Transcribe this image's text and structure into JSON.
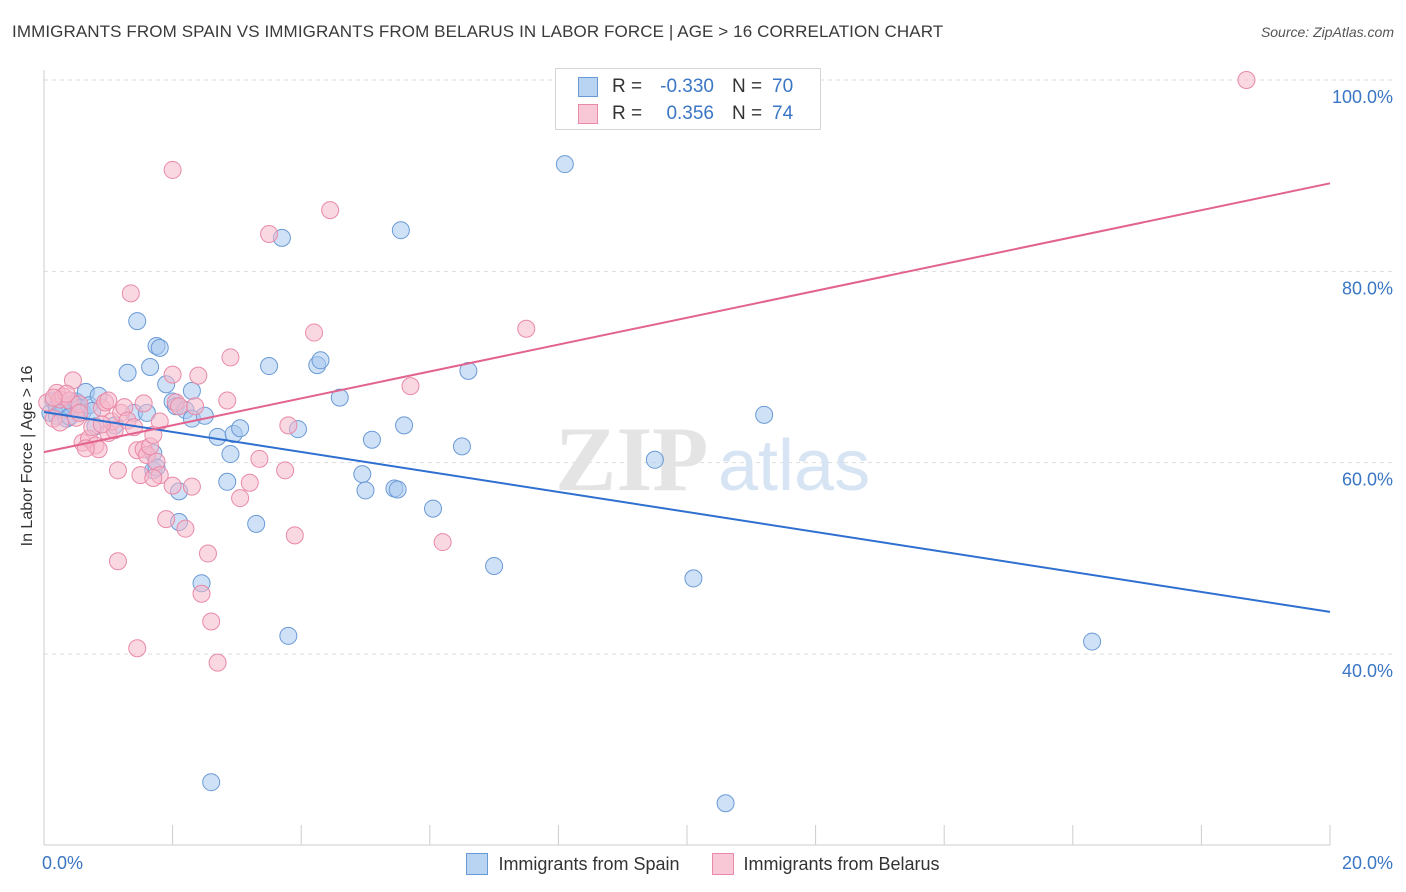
{
  "title": "IMMIGRANTS FROM SPAIN VS IMMIGRANTS FROM BELARUS IN LABOR FORCE | AGE > 16 CORRELATION CHART",
  "source": "Source: ZipAtlas.com",
  "watermark": {
    "zip": "ZIP",
    "atlas": "atlas"
  },
  "legend": {
    "rows": [
      {
        "r_label": "R =",
        "r_value": "-0.330",
        "n_label": "N =",
        "n_value": "70"
      },
      {
        "r_label": "R =",
        "r_value": "0.356",
        "n_label": "N =",
        "n_value": "74"
      }
    ]
  },
  "colors": {
    "spain_fill": "#a8c8ef",
    "spain_stroke": "#6a9ad6",
    "spain_line": "#2e6fd0",
    "belarus_fill": "#f6b8cb",
    "belarus_stroke": "#e98aa8",
    "belarus_line": "#e2638e",
    "tick_label": "#3a76c4",
    "grid": "#dddddd"
  },
  "chart_data": {
    "type": "scatter",
    "title": "IMMIGRANTS FROM SPAIN VS IMMIGRANTS FROM BELARUS IN LABOR FORCE | AGE > 16 CORRELATION CHART",
    "xlabel": "",
    "ylabel": "In Labor Force | Age > 16",
    "xlim": [
      0,
      20
    ],
    "ylim": [
      20,
      102
    ],
    "x_tick_labels": [
      "0.0%",
      "20.0%"
    ],
    "y_ticks": [
      40,
      60,
      80,
      100
    ],
    "y_tick_labels": [
      "40.0%",
      "60.0%",
      "80.0%",
      "100.0%"
    ],
    "series": [
      {
        "name": "Immigrants from Spain",
        "trend": {
          "x": [
            0,
            20
          ],
          "y": [
            65.3,
            44.4
          ]
        },
        "points": [
          [
            0.1,
            65.2
          ],
          [
            0.15,
            66.5
          ],
          [
            0.2,
            64.9
          ],
          [
            0.25,
            66.2
          ],
          [
            0.3,
            65.5
          ],
          [
            0.35,
            64.6
          ],
          [
            0.4,
            65.9
          ],
          [
            0.45,
            66.1
          ],
          [
            0.5,
            66.4
          ],
          [
            0.55,
            65.7
          ],
          [
            0.6,
            65.3
          ],
          [
            0.65,
            67.4
          ],
          [
            0.7,
            66.0
          ],
          [
            0.75,
            65.4
          ],
          [
            0.8,
            63.8
          ],
          [
            0.85,
            67.0
          ],
          [
            1.1,
            63.9
          ],
          [
            1.3,
            69.4
          ],
          [
            1.4,
            65.2
          ],
          [
            1.45,
            74.8
          ],
          [
            1.6,
            65.2
          ],
          [
            1.65,
            70.0
          ],
          [
            1.75,
            72.2
          ],
          [
            1.8,
            72.0
          ],
          [
            1.7,
            61.0
          ],
          [
            1.7,
            59.2
          ],
          [
            1.75,
            59.5
          ],
          [
            1.9,
            68.2
          ],
          [
            2.0,
            66.4
          ],
          [
            2.05,
            65.9
          ],
          [
            2.1,
            57.0
          ],
          [
            2.1,
            53.8
          ],
          [
            2.2,
            65.5
          ],
          [
            2.3,
            67.5
          ],
          [
            2.3,
            64.6
          ],
          [
            2.45,
            47.4
          ],
          [
            2.5,
            64.9
          ],
          [
            2.6,
            26.6
          ],
          [
            2.7,
            62.7
          ],
          [
            2.85,
            58.0
          ],
          [
            2.9,
            60.9
          ],
          [
            2.95,
            63.0
          ],
          [
            3.05,
            63.6
          ],
          [
            3.3,
            53.6
          ],
          [
            3.5,
            70.1
          ],
          [
            3.7,
            83.5
          ],
          [
            3.8,
            41.9
          ],
          [
            3.95,
            63.5
          ],
          [
            4.25,
            70.2
          ],
          [
            4.3,
            70.7
          ],
          [
            4.6,
            66.8
          ],
          [
            4.95,
            58.8
          ],
          [
            5.0,
            57.1
          ],
          [
            5.1,
            62.4
          ],
          [
            5.45,
            57.3
          ],
          [
            5.5,
            57.2
          ],
          [
            5.55,
            84.3
          ],
          [
            5.6,
            63.9
          ],
          [
            6.05,
            55.2
          ],
          [
            6.5,
            61.7
          ],
          [
            6.6,
            69.6
          ],
          [
            7.0,
            49.2
          ],
          [
            8.1,
            91.2
          ],
          [
            9.5,
            60.3
          ],
          [
            10.1,
            47.9
          ],
          [
            10.6,
            24.4
          ],
          [
            11.2,
            65.0
          ],
          [
            16.3,
            41.3
          ],
          [
            0.2,
            65.8
          ],
          [
            0.4,
            64.8
          ]
        ]
      },
      {
        "name": "Immigrants from Belarus",
        "trend": {
          "x": [
            0,
            20
          ],
          "y": [
            61.1,
            89.2
          ]
        },
        "points": [
          [
            0.05,
            66.3
          ],
          [
            0.15,
            64.6
          ],
          [
            0.2,
            67.3
          ],
          [
            0.25,
            66.6
          ],
          [
            0.3,
            66.9
          ],
          [
            0.4,
            66.5
          ],
          [
            0.45,
            68.6
          ],
          [
            0.5,
            64.7
          ],
          [
            0.55,
            66.1
          ],
          [
            0.6,
            62.1
          ],
          [
            0.7,
            62.5
          ],
          [
            0.75,
            63.7
          ],
          [
            0.8,
            61.8
          ],
          [
            0.85,
            61.4
          ],
          [
            0.9,
            65.7
          ],
          [
            0.95,
            66.3
          ],
          [
            1.0,
            63.1
          ],
          [
            1.05,
            64.3
          ],
          [
            1.1,
            63.4
          ],
          [
            1.15,
            59.2
          ],
          [
            1.2,
            65.2
          ],
          [
            1.25,
            65.8
          ],
          [
            1.3,
            64.4
          ],
          [
            1.4,
            63.7
          ],
          [
            1.45,
            61.3
          ],
          [
            1.5,
            58.7
          ],
          [
            1.55,
            61.4
          ],
          [
            1.6,
            60.8
          ],
          [
            1.65,
            61.7
          ],
          [
            1.7,
            62.9
          ],
          [
            1.75,
            60.1
          ],
          [
            1.8,
            58.7
          ],
          [
            1.9,
            54.1
          ],
          [
            2.0,
            69.2
          ],
          [
            2.05,
            66.3
          ],
          [
            2.1,
            65.9
          ],
          [
            2.2,
            53.1
          ],
          [
            2.3,
            57.5
          ],
          [
            2.45,
            46.3
          ],
          [
            2.55,
            50.5
          ],
          [
            2.6,
            43.4
          ],
          [
            2.7,
            39.1
          ],
          [
            2.85,
            66.5
          ],
          [
            2.9,
            71.0
          ],
          [
            3.05,
            56.3
          ],
          [
            3.2,
            57.9
          ],
          [
            3.35,
            60.4
          ],
          [
            3.5,
            83.9
          ],
          [
            3.75,
            59.2
          ],
          [
            3.8,
            63.9
          ],
          [
            3.9,
            52.4
          ],
          [
            4.2,
            73.6
          ],
          [
            4.45,
            86.4
          ],
          [
            5.7,
            68.0
          ],
          [
            6.2,
            51.7
          ],
          [
            7.5,
            74.0
          ],
          [
            2.0,
            90.6
          ],
          [
            1.35,
            77.7
          ],
          [
            1.15,
            49.7
          ],
          [
            1.45,
            40.6
          ],
          [
            1.8,
            64.3
          ],
          [
            2.4,
            69.1
          ],
          [
            18.7,
            100.0
          ],
          [
            0.9,
            64.0
          ],
          [
            0.35,
            67.2
          ],
          [
            0.65,
            61.5
          ],
          [
            0.25,
            64.2
          ],
          [
            1.55,
            66.2
          ],
          [
            2.35,
            65.9
          ],
          [
            1.0,
            66.5
          ],
          [
            0.15,
            66.8
          ],
          [
            0.55,
            65.2
          ],
          [
            1.7,
            58.4
          ],
          [
            2.0,
            57.6
          ]
        ]
      }
    ]
  },
  "bottom_legend": [
    "Immigrants from Spain",
    "Immigrants from Belarus"
  ]
}
